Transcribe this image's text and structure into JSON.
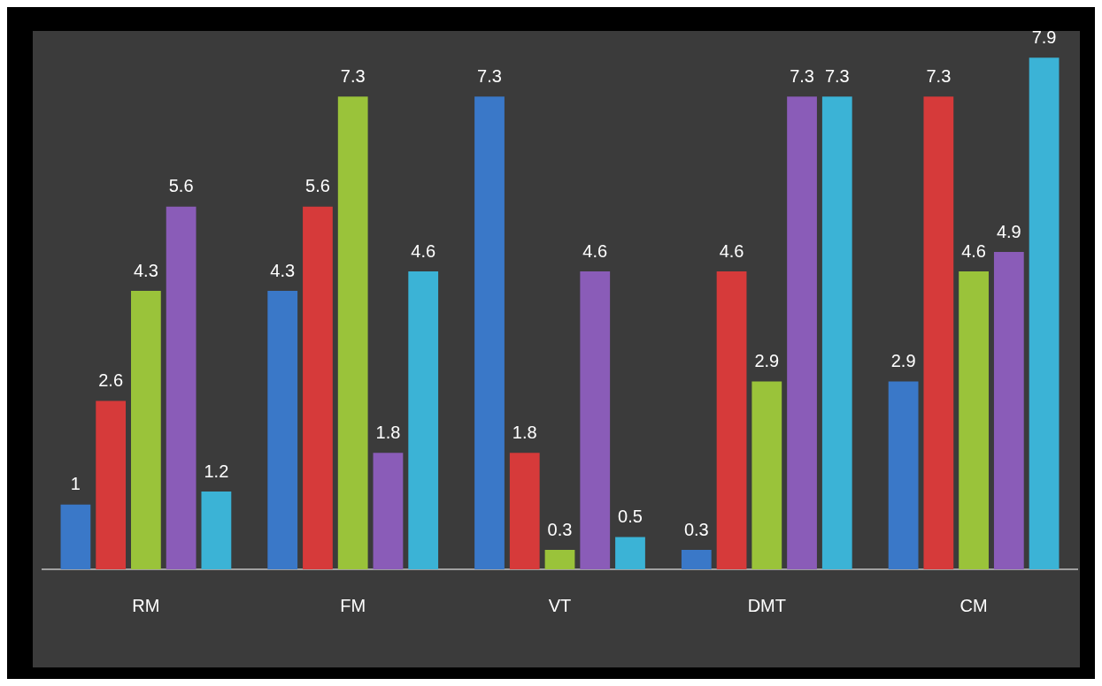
{
  "chart_data": {
    "type": "bar",
    "categories": [
      "RM",
      "FM",
      "VT",
      "DMT",
      "CM"
    ],
    "series": [
      {
        "color": "#3a78c8",
        "values": [
          1,
          4.3,
          7.3,
          0.3,
          2.9
        ]
      },
      {
        "color": "#d63a3a",
        "values": [
          2.6,
          5.6,
          1.8,
          4.6,
          7.3
        ]
      },
      {
        "color": "#9ac33a",
        "values": [
          4.3,
          7.3,
          0.3,
          2.9,
          4.6
        ]
      },
      {
        "color": "#8a5cb8",
        "values": [
          5.6,
          1.8,
          4.6,
          7.3,
          4.9
        ]
      },
      {
        "color": "#3bb3d6",
        "values": [
          1.2,
          4.6,
          0.5,
          7.3,
          7.9
        ]
      }
    ],
    "data_labels": true,
    "grid": false,
    "legend": false
  }
}
